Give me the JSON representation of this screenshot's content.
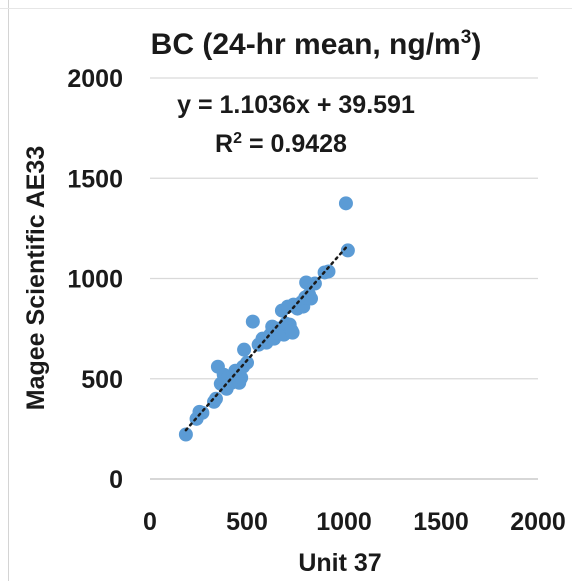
{
  "chart_data": {
    "type": "scatter",
    "title": "BC (24-hr mean, ng/m",
    "title_superscript": "3",
    "title_close": ")",
    "xlabel": "Unit 37",
    "ylabel": "Magee Scientific AE33",
    "xlim": [
      0,
      2000
    ],
    "ylim": [
      0,
      2000
    ],
    "xticks": [
      "0",
      "500",
      "1000",
      "1500",
      "2000"
    ],
    "yticks": [
      "0",
      "500",
      "1000",
      "1500",
      "2000"
    ],
    "grid": "horizontal",
    "marker_color": "#5b9bd5",
    "trendline": {
      "slope": 1.1036,
      "intercept": 39.591,
      "equation": "y = 1.1036x + 39.591",
      "r2_prefix": "R",
      "r2_superscript": "2",
      "r2_value": " = 0.9428"
    },
    "points": [
      [
        185,
        222
      ],
      [
        240,
        300
      ],
      [
        255,
        335
      ],
      [
        270,
        330
      ],
      [
        330,
        385
      ],
      [
        340,
        400
      ],
      [
        350,
        560
      ],
      [
        365,
        475
      ],
      [
        380,
        520
      ],
      [
        395,
        450
      ],
      [
        405,
        510
      ],
      [
        420,
        480
      ],
      [
        430,
        520
      ],
      [
        440,
        540
      ],
      [
        450,
        500
      ],
      [
        460,
        480
      ],
      [
        470,
        505
      ],
      [
        480,
        560
      ],
      [
        485,
        645
      ],
      [
        500,
        580
      ],
      [
        530,
        785
      ],
      [
        560,
        670
      ],
      [
        580,
        700
      ],
      [
        600,
        680
      ],
      [
        610,
        700
      ],
      [
        620,
        720
      ],
      [
        630,
        760
      ],
      [
        640,
        700
      ],
      [
        650,
        730
      ],
      [
        660,
        750
      ],
      [
        670,
        745
      ],
      [
        680,
        840
      ],
      [
        690,
        720
      ],
      [
        700,
        775
      ],
      [
        710,
        860
      ],
      [
        720,
        770
      ],
      [
        730,
        740
      ],
      [
        735,
        730
      ],
      [
        740,
        870
      ],
      [
        760,
        850
      ],
      [
        780,
        880
      ],
      [
        790,
        860
      ],
      [
        800,
        905
      ],
      [
        805,
        980
      ],
      [
        820,
        920
      ],
      [
        830,
        900
      ],
      [
        850,
        975
      ],
      [
        900,
        1030
      ],
      [
        920,
        1035
      ],
      [
        1010,
        1375
      ],
      [
        1020,
        1140
      ]
    ]
  }
}
